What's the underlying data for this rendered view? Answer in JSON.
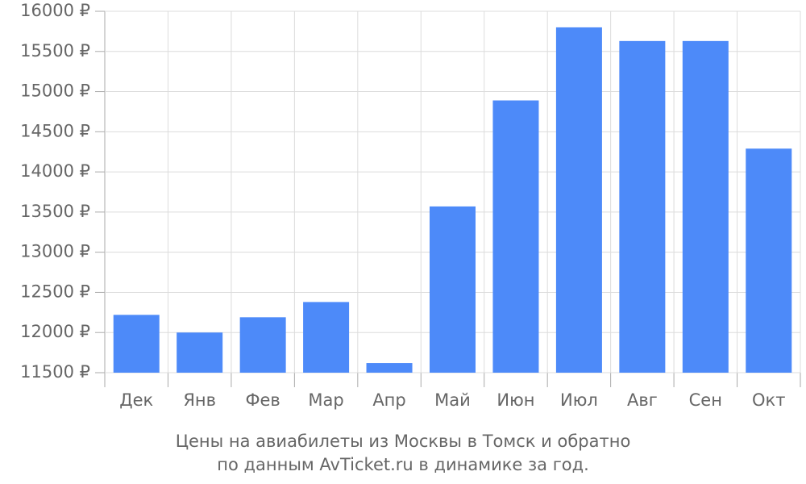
{
  "chart_data": {
    "type": "bar",
    "title": "Цены на авиабилеты из Москвы в Томск и обратно",
    "subtitle": "по данным AvTicket.ru в динамике за год.",
    "categories": [
      "Дек",
      "Янв",
      "Фев",
      "Мар",
      "Апр",
      "Май",
      "Июн",
      "Июл",
      "Авг",
      "Сен",
      "Окт"
    ],
    "values": [
      12220,
      12000,
      12190,
      12380,
      11620,
      13570,
      14890,
      15800,
      15630,
      15630,
      14290
    ],
    "color": "#4d8af9",
    "ylim": [
      11500,
      16000
    ],
    "yticks": [
      {
        "value": 11500,
        "label": "11500 ₽"
      },
      {
        "value": 12000,
        "label": "12000 ₽"
      },
      {
        "value": 12500,
        "label": "12500 ₽"
      },
      {
        "value": 13000,
        "label": "13000 ₽"
      },
      {
        "value": 13500,
        "label": "13500 ₽"
      },
      {
        "value": 14000,
        "label": "14000 ₽"
      },
      {
        "value": 14500,
        "label": "14500 ₽"
      },
      {
        "value": 15000,
        "label": "15000 ₽"
      },
      {
        "value": 15500,
        "label": "15500 ₽"
      },
      {
        "value": 16000,
        "label": "16000 ₽"
      }
    ],
    "grid": true
  }
}
